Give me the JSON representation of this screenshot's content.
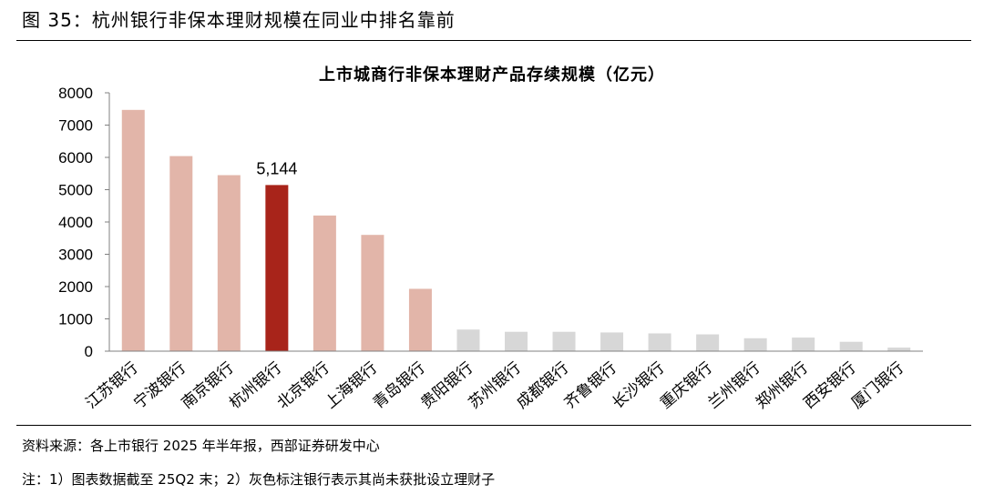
{
  "figure_title": "图 35：杭州银行非保本理财规模在同业中排名靠前",
  "source_note": "资料来源：各上市银行 2025 年半年报，西部证券研发中心",
  "footnote": "注：1）图表数据截至 25Q2 末；2）灰色标注银行表示其尚未获批设立理财子",
  "colors": {
    "normal": "#E2B5A9",
    "highlight": "#A8241A",
    "no_subsidiary": "#D7D7D7",
    "axis": "#808080"
  },
  "chart_data": {
    "type": "bar",
    "title": "上市城商行非保本理财产品存续规模（亿元）",
    "xlabel": "",
    "ylabel": "",
    "ylim": [
      0,
      8000
    ],
    "yticks": [
      "0",
      "1000",
      "2000",
      "3000",
      "4000",
      "5000",
      "6000",
      "7000",
      "8000"
    ],
    "grid": false,
    "categories": [
      "江苏银行",
      "宁波银行",
      "南京银行",
      "杭州银行",
      "北京银行",
      "上海银行",
      "青岛银行",
      "贵阳银行",
      "苏州银行",
      "成都银行",
      "齐鲁银行",
      "长沙银行",
      "重庆银行",
      "兰州银行",
      "郑州银行",
      "西安银行",
      "厦门银行"
    ],
    "values": [
      7470,
      6040,
      5450,
      5144,
      4200,
      3600,
      1930,
      670,
      600,
      600,
      580,
      550,
      520,
      400,
      420,
      290,
      110
    ],
    "bar_style": [
      "normal",
      "normal",
      "normal",
      "highlight",
      "normal",
      "normal",
      "normal",
      "no_subsidiary",
      "no_subsidiary",
      "no_subsidiary",
      "no_subsidiary",
      "no_subsidiary",
      "no_subsidiary",
      "no_subsidiary",
      "no_subsidiary",
      "no_subsidiary",
      "no_subsidiary"
    ],
    "data_labels": [
      {
        "category": "杭州银行",
        "text": "5,144"
      }
    ]
  }
}
